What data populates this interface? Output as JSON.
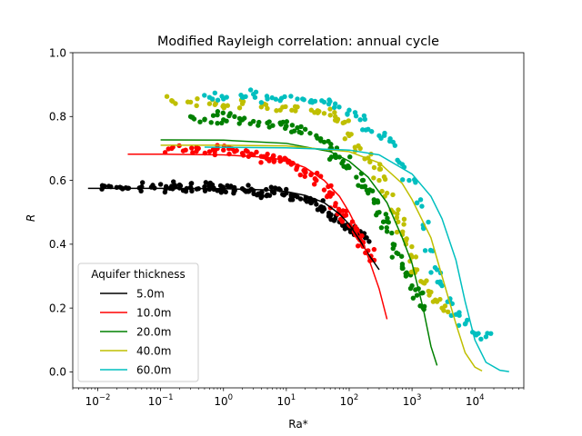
{
  "chart_data": {
    "type": "scatter",
    "title": "Modified Rayleigh correlation: annual cycle",
    "xlabel": "Ra*",
    "ylabel": "R",
    "xscale": "log",
    "xlim": [
      0.004,
      60000
    ],
    "ylim": [
      -0.05,
      1.0
    ],
    "xticks": [
      {
        "value": 0.01,
        "base": "10",
        "exp": "−2"
      },
      {
        "value": 0.1,
        "base": "10",
        "exp": "−1"
      },
      {
        "value": 1,
        "base": "10",
        "exp": "0"
      },
      {
        "value": 10,
        "base": "10",
        "exp": "1"
      },
      {
        "value": 100,
        "base": "10",
        "exp": "2"
      },
      {
        "value": 1000,
        "base": "10",
        "exp": "3"
      },
      {
        "value": 10000,
        "base": "10",
        "exp": "4"
      }
    ],
    "yticks": [
      {
        "value": 0.0,
        "label": "0.0"
      },
      {
        "value": 0.2,
        "label": "0.2"
      },
      {
        "value": 0.4,
        "label": "0.4"
      },
      {
        "value": 0.6,
        "label": "0.6"
      },
      {
        "value": 0.8,
        "label": "0.8"
      },
      {
        "value": 1.0,
        "label": "1.0"
      }
    ],
    "grid": false,
    "legend": {
      "title": "Aquifer thickness",
      "placement": "lower-left"
    },
    "series": [
      {
        "name": "5.0m",
        "color": "#000000",
        "curve": [
          [
            0.007,
            0.575
          ],
          [
            0.1,
            0.575
          ],
          [
            1,
            0.574
          ],
          [
            5,
            0.57
          ],
          [
            10,
            0.565
          ],
          [
            20,
            0.553
          ],
          [
            40,
            0.53
          ],
          [
            70,
            0.495
          ],
          [
            100,
            0.462
          ],
          [
            150,
            0.41
          ],
          [
            200,
            0.37
          ],
          [
            300,
            0.32
          ]
        ],
        "points": [
          [
            0.015,
            0.582
          ],
          [
            0.02,
            0.578
          ],
          [
            0.03,
            0.575
          ],
          [
            0.05,
            0.58
          ],
          [
            0.08,
            0.576
          ],
          [
            0.12,
            0.572
          ],
          [
            0.15,
            0.582
          ],
          [
            0.2,
            0.576
          ],
          [
            0.25,
            0.57
          ],
          [
            0.3,
            0.578
          ],
          [
            0.4,
            0.574
          ],
          [
            0.5,
            0.58
          ],
          [
            0.6,
            0.572
          ],
          [
            0.7,
            0.576
          ],
          [
            0.8,
            0.568
          ],
          [
            1.0,
            0.575
          ],
          [
            1.2,
            0.58
          ],
          [
            1.5,
            0.57
          ],
          [
            2,
            0.574
          ],
          [
            2.5,
            0.565
          ],
          [
            3,
            0.568
          ],
          [
            4,
            0.56
          ],
          [
            5,
            0.555
          ],
          [
            6,
            0.565
          ],
          [
            8,
            0.57
          ],
          [
            10,
            0.56
          ],
          [
            12,
            0.555
          ],
          [
            15,
            0.548
          ],
          [
            20,
            0.54
          ],
          [
            25,
            0.53
          ],
          [
            30,
            0.525
          ],
          [
            35,
            0.515
          ],
          [
            40,
            0.51
          ],
          [
            50,
            0.49
          ],
          [
            60,
            0.48
          ],
          [
            70,
            0.47
          ],
          [
            80,
            0.46
          ],
          [
            100,
            0.45
          ],
          [
            120,
            0.43
          ],
          [
            150,
            0.44
          ],
          [
            180,
            0.42
          ]
        ]
      },
      {
        "name": "10.0m",
        "color": "#ff0000",
        "curve": [
          [
            0.03,
            0.682
          ],
          [
            0.1,
            0.682
          ],
          [
            1,
            0.68
          ],
          [
            5,
            0.672
          ],
          [
            10,
            0.662
          ],
          [
            20,
            0.64
          ],
          [
            40,
            0.6
          ],
          [
            70,
            0.55
          ],
          [
            100,
            0.5
          ],
          [
            150,
            0.43
          ],
          [
            200,
            0.36
          ],
          [
            300,
            0.26
          ],
          [
            400,
            0.165
          ]
        ],
        "points": [
          [
            0.15,
            0.7
          ],
          [
            0.25,
            0.695
          ],
          [
            0.4,
            0.7
          ],
          [
            0.6,
            0.69
          ],
          [
            0.8,
            0.7
          ],
          [
            1.0,
            0.695
          ],
          [
            1.5,
            0.69
          ],
          [
            2,
            0.685
          ],
          [
            3,
            0.68
          ],
          [
            4,
            0.675
          ],
          [
            5,
            0.668
          ],
          [
            6,
            0.67
          ],
          [
            8,
            0.66
          ],
          [
            10,
            0.665
          ],
          [
            12,
            0.65
          ],
          [
            15,
            0.645
          ],
          [
            20,
            0.63
          ],
          [
            25,
            0.62
          ],
          [
            30,
            0.6
          ],
          [
            40,
            0.57
          ],
          [
            50,
            0.55
          ],
          [
            60,
            0.52
          ],
          [
            70,
            0.5
          ],
          [
            80,
            0.49
          ],
          [
            100,
            0.46
          ],
          [
            120,
            0.44
          ],
          [
            140,
            0.42
          ],
          [
            160,
            0.4
          ],
          [
            200,
            0.38
          ],
          [
            250,
            0.35
          ]
        ]
      },
      {
        "name": "20.0m",
        "color": "#008000",
        "curve": [
          [
            0.1,
            0.727
          ],
          [
            1,
            0.726
          ],
          [
            10,
            0.716
          ],
          [
            50,
            0.69
          ],
          [
            100,
            0.66
          ],
          [
            200,
            0.61
          ],
          [
            400,
            0.53
          ],
          [
            700,
            0.42
          ],
          [
            1000,
            0.34
          ],
          [
            1500,
            0.2
          ],
          [
            2000,
            0.08
          ],
          [
            2500,
            0.02
          ]
        ],
        "points": [
          [
            0.3,
            0.8
          ],
          [
            0.5,
            0.79
          ],
          [
            0.8,
            0.805
          ],
          [
            1,
            0.79
          ],
          [
            1.5,
            0.8
          ],
          [
            2,
            0.79
          ],
          [
            3,
            0.785
          ],
          [
            5,
            0.78
          ],
          [
            8,
            0.78
          ],
          [
            10,
            0.77
          ],
          [
            15,
            0.765
          ],
          [
            20,
            0.76
          ],
          [
            30,
            0.74
          ],
          [
            40,
            0.72
          ],
          [
            50,
            0.7
          ],
          [
            60,
            0.68
          ],
          [
            80,
            0.66
          ],
          [
            100,
            0.64
          ],
          [
            130,
            0.61
          ],
          [
            170,
            0.58
          ],
          [
            200,
            0.56
          ],
          [
            250,
            0.53
          ],
          [
            300,
            0.5
          ],
          [
            350,
            0.47
          ],
          [
            400,
            0.44
          ],
          [
            500,
            0.4
          ],
          [
            600,
            0.37
          ],
          [
            700,
            0.33
          ],
          [
            800,
            0.3
          ],
          [
            1000,
            0.27
          ],
          [
            1200,
            0.24
          ],
          [
            1500,
            0.2
          ]
        ]
      },
      {
        "name": "40.0m",
        "color": "#bfbf00",
        "curve": [
          [
            0.1,
            0.71
          ],
          [
            1,
            0.71
          ],
          [
            10,
            0.708
          ],
          [
            100,
            0.69
          ],
          [
            300,
            0.655
          ],
          [
            700,
            0.59
          ],
          [
            1000,
            0.54
          ],
          [
            2000,
            0.42
          ],
          [
            3000,
            0.3
          ],
          [
            5000,
            0.15
          ],
          [
            7000,
            0.06
          ],
          [
            10000,
            0.015
          ],
          [
            13000,
            0.003
          ]
        ],
        "points": [
          [
            0.15,
            0.85
          ],
          [
            0.3,
            0.845
          ],
          [
            0.6,
            0.84
          ],
          [
            1,
            0.835
          ],
          [
            2,
            0.84
          ],
          [
            4,
            0.83
          ],
          [
            8,
            0.82
          ],
          [
            15,
            0.83
          ],
          [
            25,
            0.82
          ],
          [
            40,
            0.81
          ],
          [
            60,
            0.8
          ],
          [
            80,
            0.78
          ],
          [
            100,
            0.74
          ],
          [
            150,
            0.7
          ],
          [
            200,
            0.67
          ],
          [
            250,
            0.64
          ],
          [
            300,
            0.6
          ],
          [
            400,
            0.56
          ],
          [
            500,
            0.5
          ],
          [
            600,
            0.47
          ],
          [
            700,
            0.43
          ],
          [
            800,
            0.4
          ],
          [
            1000,
            0.36
          ],
          [
            1200,
            0.32
          ],
          [
            1500,
            0.28
          ],
          [
            2000,
            0.25
          ],
          [
            2500,
            0.22
          ],
          [
            3000,
            0.2
          ]
        ]
      },
      {
        "name": "60.0m",
        "color": "#00bfbf",
        "curve": [
          [
            0.5,
            0.704
          ],
          [
            10,
            0.702
          ],
          [
            100,
            0.695
          ],
          [
            300,
            0.68
          ],
          [
            1000,
            0.62
          ],
          [
            2000,
            0.55
          ],
          [
            3000,
            0.48
          ],
          [
            5000,
            0.35
          ],
          [
            7000,
            0.22
          ],
          [
            10000,
            0.1
          ],
          [
            15000,
            0.03
          ],
          [
            25000,
            0.005
          ],
          [
            35000,
            0.001
          ]
        ],
        "points": [
          [
            0.6,
            0.86
          ],
          [
            1,
            0.855
          ],
          [
            2,
            0.86
          ],
          [
            3,
            0.87
          ],
          [
            5,
            0.855
          ],
          [
            8,
            0.85
          ],
          [
            15,
            0.855
          ],
          [
            25,
            0.85
          ],
          [
            40,
            0.845
          ],
          [
            60,
            0.84
          ],
          [
            100,
            0.82
          ],
          [
            150,
            0.79
          ],
          [
            200,
            0.76
          ],
          [
            300,
            0.74
          ],
          [
            500,
            0.72
          ],
          [
            700,
            0.65
          ],
          [
            900,
            0.6
          ],
          [
            1200,
            0.53
          ],
          [
            1500,
            0.46
          ],
          [
            2000,
            0.38
          ],
          [
            2500,
            0.32
          ],
          [
            3000,
            0.27
          ],
          [
            4000,
            0.22
          ],
          [
            5000,
            0.18
          ],
          [
            7000,
            0.15
          ],
          [
            10000,
            0.12
          ],
          [
            15000,
            0.11
          ]
        ]
      }
    ]
  }
}
